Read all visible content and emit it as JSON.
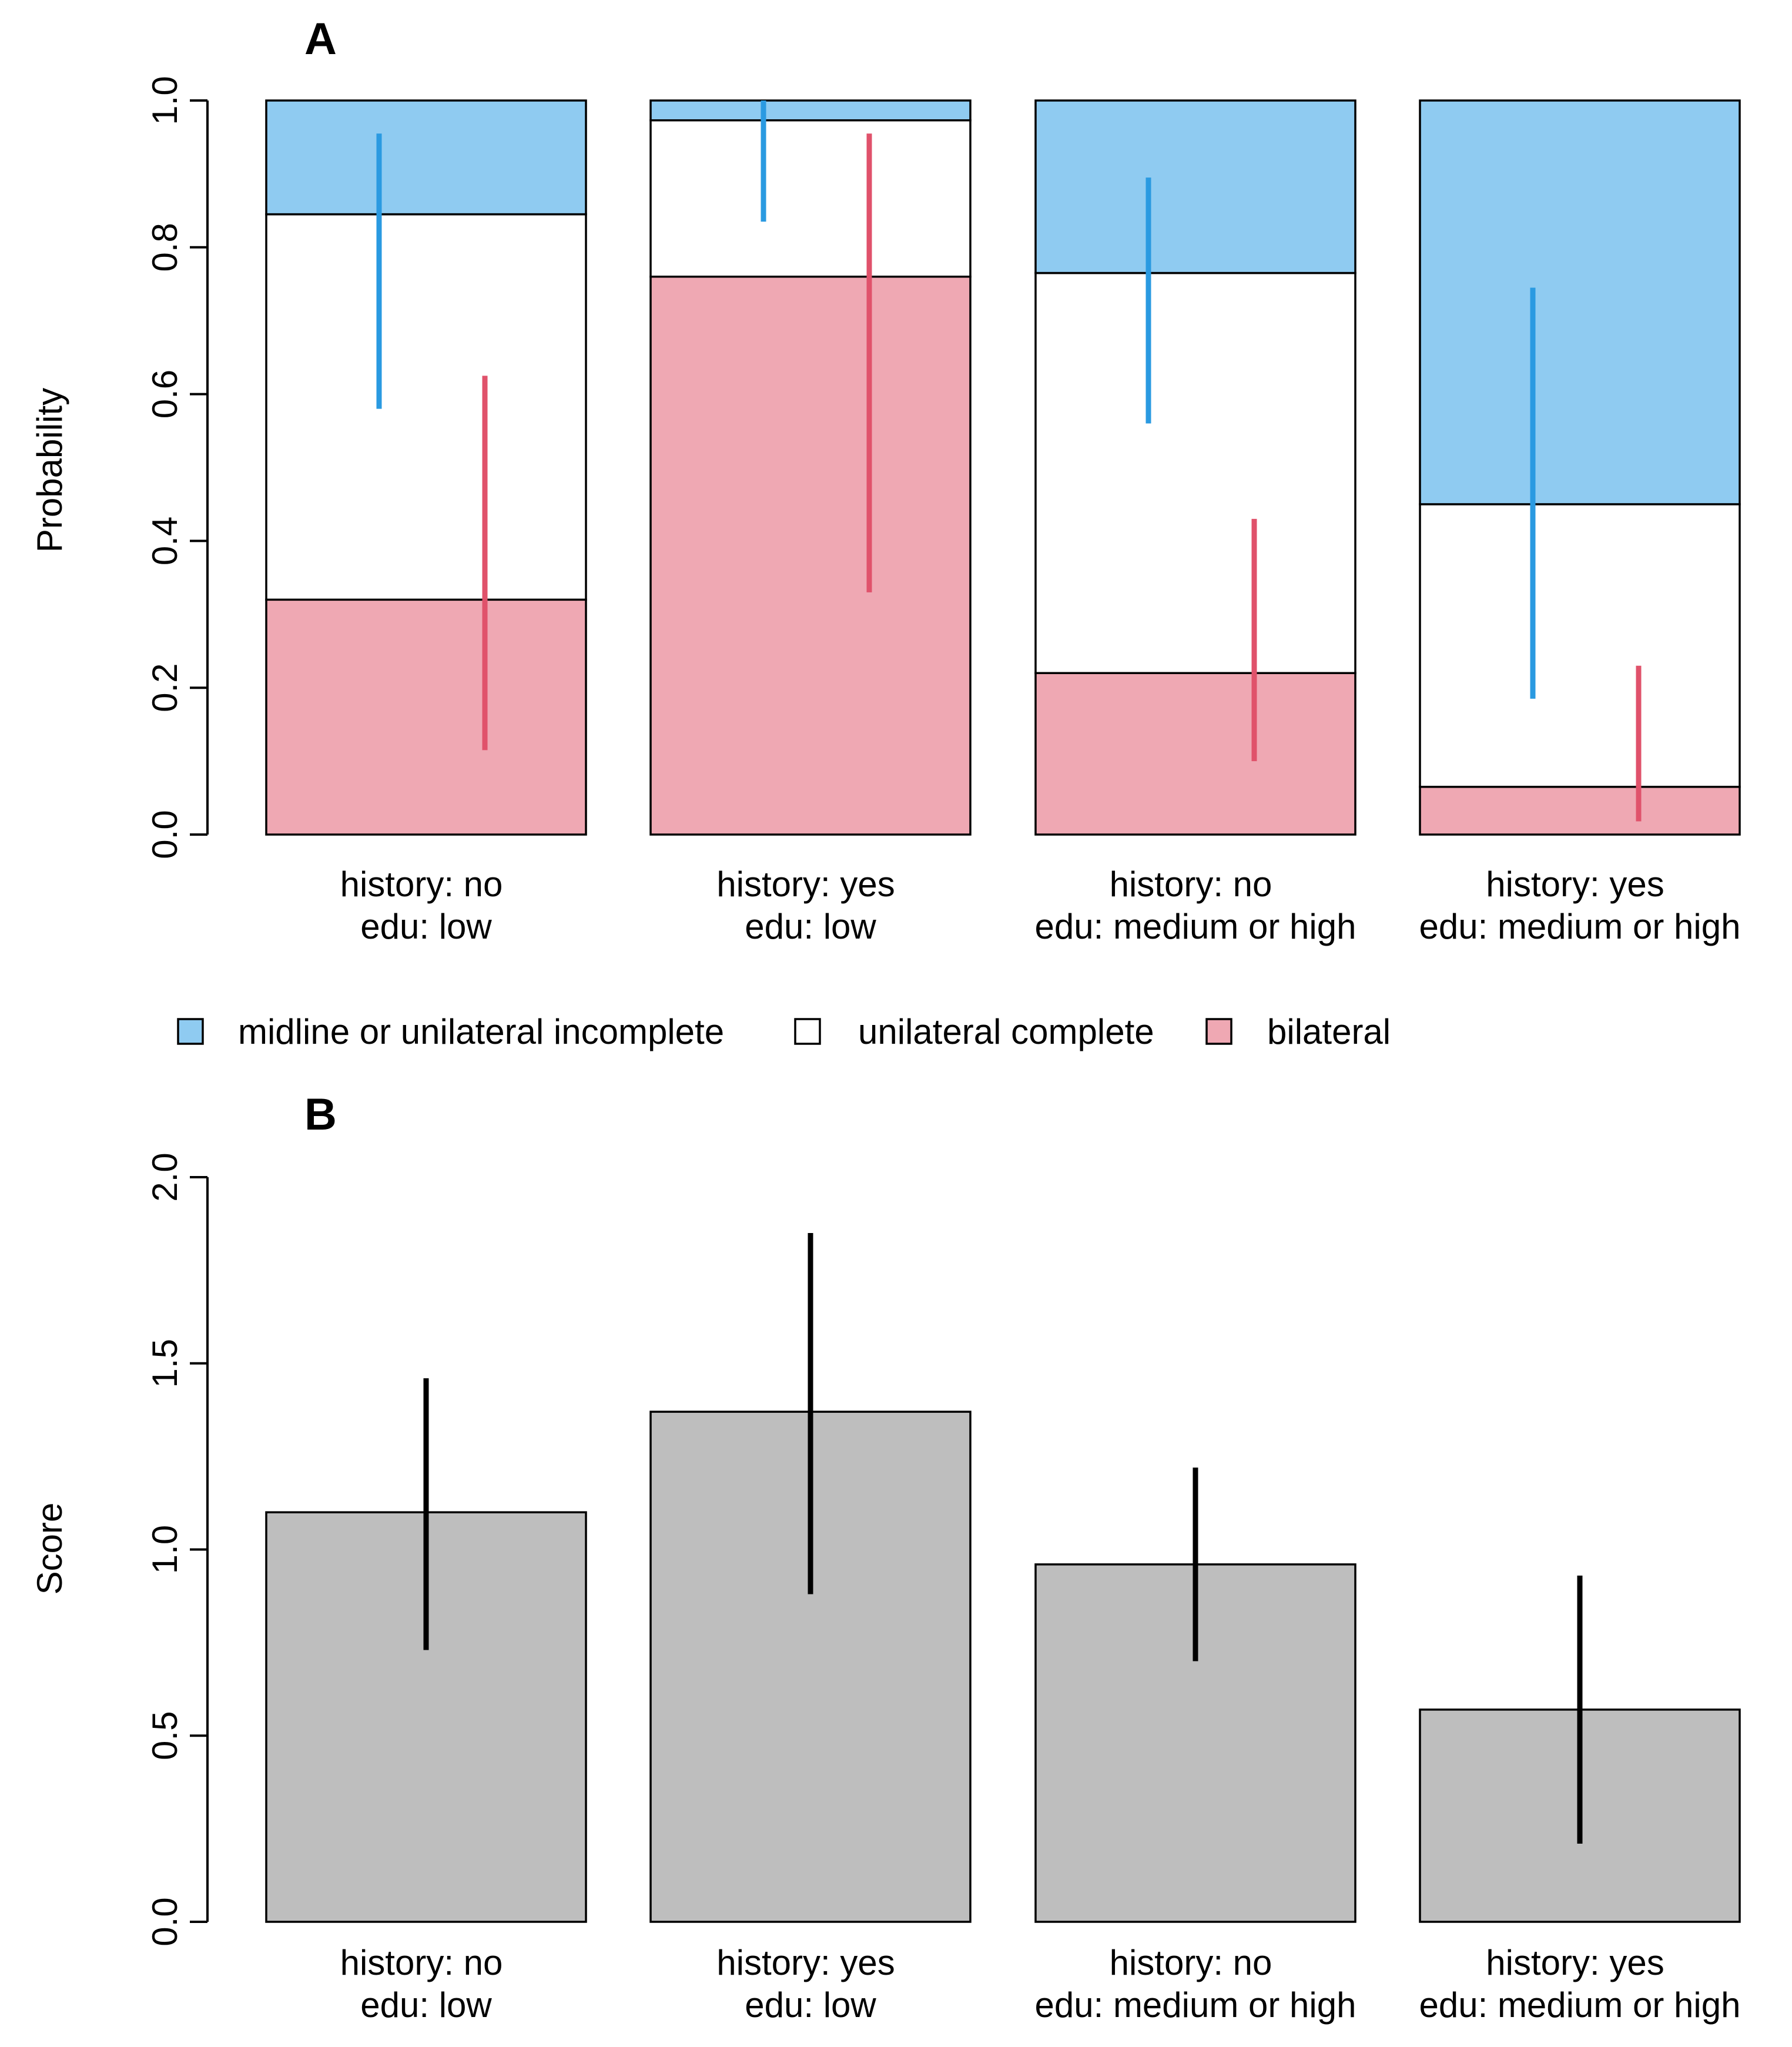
{
  "chart_data": [
    {
      "panel": "A",
      "type": "bar",
      "stacked": true,
      "ylabel": "Probability",
      "ylim": [
        0,
        1
      ],
      "yticks": [
        "0.0",
        "0.2",
        "0.4",
        "0.6",
        "0.8",
        "1.0"
      ],
      "categories": [
        [
          "history: no",
          "edu: low"
        ],
        [
          "history: yes",
          "edu: low"
        ],
        [
          "history: no",
          "edu: medium or high"
        ],
        [
          "history: yes",
          "edu: medium or high"
        ]
      ],
      "series": [
        {
          "name": "bilateral",
          "color": "#EFA8B3",
          "values": [
            0.32,
            0.76,
            0.22,
            0.065
          ]
        },
        {
          "name": "unilateral complete",
          "color": "#FFFFFF",
          "values": [
            0.525,
            0.213,
            0.545,
            0.385
          ]
        },
        {
          "name": "midline or unilateral incomplete",
          "color": "#8FCBF1",
          "values": [
            0.155,
            0.027,
            0.235,
            0.55
          ]
        }
      ],
      "intervals": [
        {
          "series": "midline or unilateral incomplete",
          "color": "#2A9AE1",
          "low": [
            0.58,
            0.835,
            0.56,
            0.185
          ],
          "high": [
            0.955,
            1.0,
            0.895,
            0.745
          ]
        },
        {
          "series": "bilateral",
          "color": "#E0526B",
          "low": [
            0.115,
            0.33,
            0.1,
            0.018
          ],
          "high": [
            0.625,
            0.955,
            0.43,
            0.23
          ]
        }
      ],
      "legend": {
        "placement": "bottom",
        "entries": [
          {
            "label": "midline or unilateral incomplete",
            "color": "#8FCBF1"
          },
          {
            "label": "unilateral complete",
            "color": "#FFFFFF"
          },
          {
            "label": "bilateral",
            "color": "#EFA8B3"
          }
        ]
      }
    },
    {
      "panel": "B",
      "type": "bar",
      "ylabel": "Score",
      "ylim": [
        0,
        2
      ],
      "yticks": [
        "0.0",
        "0.5",
        "1.0",
        "1.5",
        "2.0"
      ],
      "categories": [
        [
          "history: no",
          "edu: low"
        ],
        [
          "history: yes",
          "edu: low"
        ],
        [
          "history: no",
          "edu: medium or high"
        ],
        [
          "history: yes",
          "edu: medium or high"
        ]
      ],
      "bar_color": "#BEBEBE",
      "errorbar_color": "#000000",
      "values": [
        1.1,
        1.37,
        0.96,
        0.57
      ],
      "low": [
        0.73,
        0.88,
        0.7,
        0.21
      ],
      "high": [
        1.46,
        1.85,
        1.22,
        0.93
      ]
    }
  ]
}
